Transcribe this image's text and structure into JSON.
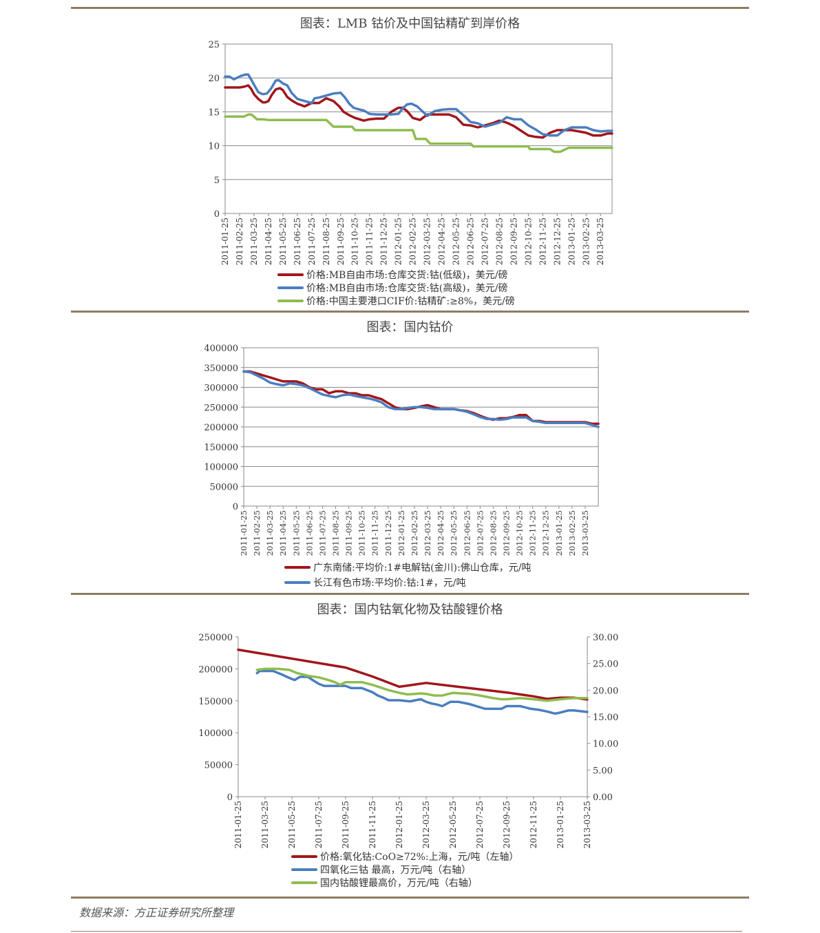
{
  "charts": [
    {
      "title": "图表：LMB 钴价及中国钴精矿到岸价格",
      "legend": [
        {
          "label": "价格:MB自由市场:仓库交货:钴(低级)，美元/磅",
          "color": "#a0161c"
        },
        {
          "label": "价格:MB自由市场:仓库交货:钴(高级)，美元/磅",
          "color": "#4a7ebf"
        },
        {
          "label": "价格:中国主要港口CIF价:钴精矿:≥8%，美元/磅",
          "color": "#8fbc4f"
        }
      ]
    },
    {
      "title": "图表：国内钴价",
      "legend": [
        {
          "label": "广东南储:平均价:1#电解钴(金川):佛山仓库，元/吨",
          "color": "#a0161c"
        },
        {
          "label": "长江有色市场:平均价:钴:1#，元/吨",
          "color": "#4a7ebf"
        }
      ]
    },
    {
      "title": "图表：国内钴氧化物及钴酸锂价格",
      "legend": [
        {
          "label": "价格:氧化钴:CoO≥72%:上海，元/吨（左轴）",
          "color": "#a0161c"
        },
        {
          "label": "四氧化三钴  最高，万元/吨（右轴）",
          "color": "#4a7ebf"
        },
        {
          "label": "国内钴酸锂最高价，万元/吨（右轴）",
          "color": "#8fbc4f"
        }
      ]
    }
  ],
  "source": "数据来源：方正证券研究所整理",
  "chart_data": [
    {
      "type": "line",
      "title": "图表：LMB 钴价及中国钴精矿到岸价格",
      "categories": [
        "2011-01-25",
        "2011-02-25",
        "2011-03-25",
        "2011-04-25",
        "2011-05-25",
        "2011-06-25",
        "2011-07-25",
        "2011-08-25",
        "2011-09-25",
        "2011-10-25",
        "2011-11-25",
        "2011-12-25",
        "2012-01-25",
        "2012-02-25",
        "2012-03-25",
        "2012-04-25",
        "2012-05-25",
        "2012-06-25",
        "2012-07-25",
        "2012-08-25",
        "2012-09-25",
        "2012-10-25",
        "2012-11-25",
        "2012-12-25",
        "2013-01-25",
        "2013-02-25",
        "2013-03-25"
      ],
      "yticks": [
        0,
        5,
        10,
        15,
        20,
        25
      ],
      "ylim": [
        0,
        25
      ],
      "grid": true,
      "legend_position": "bottom",
      "series": [
        {
          "name": "价格:MB自由市场:仓库交货:钴(低级)，美元/磅",
          "color": "#a0161c",
          "x": [
            0,
            0.5,
            1,
            1.3,
            1.6,
            1.8,
            2,
            2.3,
            2.6,
            2.8,
            3,
            3.2,
            3.5,
            3.8,
            4,
            4.3,
            4.6,
            5,
            5.5,
            6,
            6.5,
            7,
            7.5,
            7.9,
            8.2,
            8.6,
            9,
            9.3,
            9.6,
            10,
            10.5,
            11,
            11.5,
            12,
            12.3,
            12.6,
            13,
            13.5,
            14,
            14.5,
            15,
            15.5,
            16,
            16.5,
            17,
            17.5,
            18,
            18.5,
            19,
            19.5,
            20,
            20.5,
            21,
            21.5,
            22,
            22.5,
            23,
            23.5,
            24,
            24.5,
            25,
            25.5,
            26,
            26.5,
            26.8
          ],
          "y": [
            18.6,
            18.6,
            18.6,
            18.7,
            18.9,
            18.4,
            17.6,
            16.9,
            16.4,
            16.4,
            16.6,
            17.4,
            18.3,
            18.5,
            18.2,
            17.2,
            16.7,
            16.2,
            15.8,
            16.3,
            16.3,
            17.0,
            16.6,
            15.8,
            15.0,
            14.5,
            14.1,
            13.9,
            13.7,
            13.9,
            14.0,
            14.0,
            15.0,
            15.6,
            15.6,
            15.1,
            14.1,
            13.8,
            14.6,
            14.6,
            14.6,
            14.6,
            14.2,
            13.1,
            13.0,
            12.7,
            13.0,
            13.3,
            13.7,
            13.4,
            12.9,
            12.2,
            11.5,
            11.3,
            11.2,
            11.9,
            12.3,
            12.3,
            12.3,
            12.1,
            11.9,
            11.5,
            11.5,
            11.8,
            11.8
          ]
        },
        {
          "name": "价格:MB自由市场:仓库交货:钴(高级)，美元/磅",
          "color": "#4a7ebf",
          "x": [
            0,
            0.3,
            0.6,
            0.9,
            1.1,
            1.4,
            1.6,
            1.8,
            2,
            2.3,
            2.6,
            2.9,
            3.2,
            3.5,
            3.7,
            4,
            4.3,
            4.6,
            5,
            5.5,
            6,
            6.2,
            6.5,
            7,
            7.5,
            8,
            8.3,
            8.6,
            8.9,
            9.2,
            9.6,
            10,
            10.5,
            11,
            11.5,
            12,
            12.3,
            12.6,
            12.9,
            13.3,
            13.6,
            14,
            14.5,
            15,
            15.5,
            16,
            16.5,
            17,
            17.5,
            18,
            18.5,
            19,
            19.5,
            20,
            20.5,
            21,
            21.5,
            22,
            22.5,
            23,
            23.5,
            24,
            24.5,
            25,
            25.5,
            26,
            26.5,
            26.8
          ],
          "y": [
            20.2,
            20.2,
            19.8,
            20.1,
            20.3,
            20.5,
            20.5,
            19.8,
            19.0,
            17.9,
            17.6,
            17.7,
            18.5,
            19.6,
            19.7,
            19.2,
            18.9,
            17.8,
            16.9,
            16.6,
            16.3,
            17.0,
            17.1,
            17.4,
            17.7,
            17.8,
            17.1,
            16.2,
            15.6,
            15.4,
            15.2,
            14.7,
            14.6,
            14.6,
            14.6,
            14.7,
            15.5,
            16.1,
            16.2,
            15.8,
            15.2,
            14.4,
            15.1,
            15.3,
            15.4,
            15.4,
            14.5,
            13.5,
            13.3,
            12.8,
            13.1,
            13.4,
            14.2,
            13.9,
            13.9,
            13.0,
            12.4,
            11.7,
            11.5,
            11.5,
            12.3,
            12.7,
            12.7,
            12.7,
            12.3,
            12.1,
            12.2,
            12.2
          ]
        },
        {
          "name": "价格:中国主要港口CIF价:钴精矿:≥8%，美元/磅",
          "color": "#8fbc4f",
          "x": [
            0,
            0.5,
            1,
            1.3,
            1.6,
            1.8,
            2,
            2.2,
            2.6,
            3,
            3.5,
            4,
            5,
            6,
            7,
            7.5,
            8,
            8.8,
            9,
            10,
            11,
            12,
            13,
            13.2,
            13.9,
            14.2,
            15,
            16,
            17,
            17.2,
            18,
            19,
            20,
            21,
            21.1,
            22,
            22.5,
            22.8,
            23,
            23.2,
            23.8,
            24,
            25,
            26,
            26.8
          ],
          "y": [
            14.3,
            14.3,
            14.3,
            14.3,
            14.6,
            14.6,
            14.3,
            13.9,
            13.9,
            13.8,
            13.8,
            13.8,
            13.8,
            13.8,
            13.8,
            12.8,
            12.8,
            12.8,
            12.3,
            12.3,
            12.3,
            12.3,
            12.3,
            11.0,
            11.0,
            10.3,
            10.3,
            10.3,
            10.3,
            9.9,
            9.9,
            9.9,
            9.9,
            9.9,
            9.5,
            9.5,
            9.5,
            9.1,
            9.1,
            9.1,
            9.7,
            9.7,
            9.7,
            9.7,
            9.7
          ]
        }
      ]
    },
    {
      "type": "line",
      "title": "图表：国内钴价",
      "categories": [
        "2011-01-25",
        "2011-02-25",
        "2011-03-25",
        "2011-04-25",
        "2011-05-25",
        "2011-06-25",
        "2011-07-25",
        "2011-08-25",
        "2011-09-25",
        "2011-10-25",
        "2011-11-25",
        "2011-12-25",
        "2012-01-25",
        "2012-02-25",
        "2012-03-25",
        "2012-04-25",
        "2012-05-25",
        "2012-06-25",
        "2012-07-25",
        "2012-08-25",
        "2012-09-25",
        "2012-10-25",
        "2012-11-25",
        "2012-12-25",
        "2013-01-25",
        "2013-02-25",
        "2013-03-25"
      ],
      "yticks": [
        0,
        50000,
        100000,
        150000,
        200000,
        250000,
        300000,
        350000,
        400000
      ],
      "ylim": [
        0,
        400000
      ],
      "grid": true,
      "legend_position": "bottom",
      "series": [
        {
          "name": "广东南储:平均价:1#电解钴(金川):佛山仓库，元/吨",
          "color": "#a0161c",
          "x": [
            0,
            0.5,
            1,
            1.5,
            2,
            2.5,
            3,
            3.5,
            4,
            4.5,
            5,
            5.5,
            6,
            6.5,
            7,
            7.5,
            8,
            8.5,
            9,
            9.5,
            10,
            10.5,
            11,
            11.5,
            12,
            12.5,
            13,
            13.5,
            14,
            14.5,
            15,
            15.5,
            16,
            16.5,
            17,
            17.5,
            18,
            18.5,
            19,
            19.5,
            20,
            20.5,
            21,
            21.5,
            22,
            22.5,
            23,
            23.5,
            24,
            24.5,
            25,
            25.5,
            26,
            26.5,
            27
          ],
          "y": [
            340000,
            340000,
            335000,
            330000,
            325000,
            320000,
            315000,
            315000,
            315000,
            310000,
            300000,
            295000,
            295000,
            285000,
            290000,
            290000,
            285000,
            285000,
            280000,
            280000,
            275000,
            270000,
            260000,
            250000,
            245000,
            245000,
            248000,
            252000,
            255000,
            250000,
            245000,
            245000,
            245000,
            242000,
            240000,
            235000,
            228000,
            222000,
            218000,
            222000,
            222000,
            225000,
            230000,
            230000,
            215000,
            215000,
            212000,
            212000,
            212000,
            212000,
            212000,
            212000,
            212000,
            208000,
            208000
          ]
        },
        {
          "name": "长江有色市场:平均价:钴:1#，元/吨",
          "color": "#4a7ebf",
          "x": [
            0,
            0.5,
            1,
            1.5,
            2,
            2.5,
            3,
            3.5,
            4,
            4.5,
            5,
            5.5,
            6,
            6.5,
            7,
            7.5,
            8,
            8.5,
            9,
            9.5,
            10,
            10.5,
            11,
            11.5,
            12,
            12.5,
            13,
            13.5,
            14,
            14.5,
            15,
            15.5,
            16,
            16.5,
            17,
            17.5,
            18,
            18.5,
            19,
            19.5,
            20,
            20.5,
            21,
            21.5,
            22,
            22.5,
            23,
            23.5,
            24,
            24.5,
            25,
            25.5,
            26,
            26.5,
            27
          ],
          "y": [
            340000,
            338000,
            330000,
            322000,
            312000,
            308000,
            305000,
            310000,
            308000,
            305000,
            298000,
            290000,
            282000,
            278000,
            275000,
            280000,
            282000,
            278000,
            275000,
            272000,
            268000,
            262000,
            250000,
            245000,
            245000,
            248000,
            250000,
            250000,
            248000,
            245000,
            245000,
            245000,
            245000,
            242000,
            238000,
            232000,
            225000,
            220000,
            220000,
            218000,
            220000,
            224000,
            224000,
            224000,
            215000,
            213000,
            210000,
            210000,
            210000,
            210000,
            210000,
            210000,
            210000,
            205000,
            200000
          ]
        }
      ]
    },
    {
      "type": "line",
      "title": "图表：国内钴氧化物及钴酸锂价格",
      "categories": [
        "2011-01-25",
        "2011-03-25",
        "2011-05-25",
        "2011-07-25",
        "2011-09-25",
        "2011-11-25",
        "2012-01-25",
        "2012-03-25",
        "2012-05-25",
        "2012-07-25",
        "2012-09-25",
        "2012-11-25",
        "2013-01-25",
        "2013-03-25"
      ],
      "yticks_left": [
        0,
        50000,
        100000,
        150000,
        200000,
        250000
      ],
      "yticks_right": [
        "0.00",
        "5.00",
        "10.00",
        "15.00",
        "20.00",
        "25.00",
        "30.00"
      ],
      "ylim_left": [
        0,
        250000
      ],
      "ylim_right": [
        0,
        30
      ],
      "grid": false,
      "legend_position": "bottom",
      "series": [
        {
          "name": "价格:氧化钴:CoO≥72%:上海，元/吨（左轴）",
          "axis": "left",
          "color": "#a0161c",
          "x": [
            0,
            4,
            5,
            6,
            7,
            8,
            9,
            10,
            11,
            11.5,
            12,
            12.5,
            13
          ],
          "y": [
            230000,
            202000,
            188000,
            172000,
            178000,
            173000,
            168000,
            163000,
            157000,
            153000,
            155000,
            155000,
            152000
          ]
        },
        {
          "name": "四氧化三钴  最高，万元/吨（右轴）",
          "axis": "right",
          "color": "#4a7ebf",
          "x": [
            0.7,
            0.8,
            1,
            1.3,
            1.6,
            1.9,
            2.1,
            2.3,
            2.6,
            2.8,
            3,
            3.2,
            3.5,
            3.8,
            4,
            4.2,
            4.6,
            5,
            5.2,
            5.4,
            5.6,
            6,
            6.4,
            6.6,
            6.8,
            7,
            7.2,
            7.4,
            7.6,
            7.9,
            8.2,
            8.6,
            9,
            9.2,
            9.5,
            9.8,
            10,
            10.5,
            10.9,
            11.2,
            11.5,
            11.8,
            12,
            12.3,
            12.5,
            13
          ],
          "y": [
            23.2,
            23.6,
            23.6,
            23.6,
            23.0,
            22.3,
            21.9,
            22.5,
            22.5,
            21.8,
            21.2,
            20.8,
            20.8,
            20.8,
            20.8,
            20.4,
            20.4,
            19.6,
            19.0,
            18.6,
            18.1,
            18.1,
            17.9,
            18.1,
            18.3,
            17.8,
            17.5,
            17.3,
            17.0,
            17.8,
            17.8,
            17.4,
            16.8,
            16.5,
            16.5,
            16.5,
            17.0,
            17.0,
            16.5,
            16.3,
            16.0,
            15.6,
            15.8,
            16.2,
            16.2,
            15.9
          ]
        },
        {
          "name": "国内钴酸锂最高价，万元/吨（右轴）",
          "axis": "right",
          "color": "#8fbc4f",
          "x": [
            0.7,
            1,
            1.5,
            1.9,
            2.2,
            2.6,
            3,
            3.3,
            3.6,
            3.8,
            4,
            4.3,
            4.6,
            5,
            5.3,
            5.6,
            6,
            6.3,
            6.6,
            6.8,
            7,
            7.3,
            7.6,
            8,
            8.6,
            9,
            9.5,
            9.8,
            10,
            10.5,
            11,
            11.5,
            12,
            12.5,
            13
          ],
          "y": [
            23.8,
            24.0,
            24.0,
            23.8,
            23.2,
            22.7,
            22.4,
            22.0,
            21.5,
            21.0,
            21.5,
            21.5,
            21.5,
            21.0,
            20.5,
            20.0,
            19.5,
            19.2,
            19.3,
            19.4,
            19.3,
            19.0,
            19.0,
            19.5,
            19.3,
            19.0,
            18.5,
            18.3,
            18.3,
            18.5,
            18.3,
            18.0,
            18.3,
            18.5,
            18.5
          ]
        }
      ]
    }
  ]
}
